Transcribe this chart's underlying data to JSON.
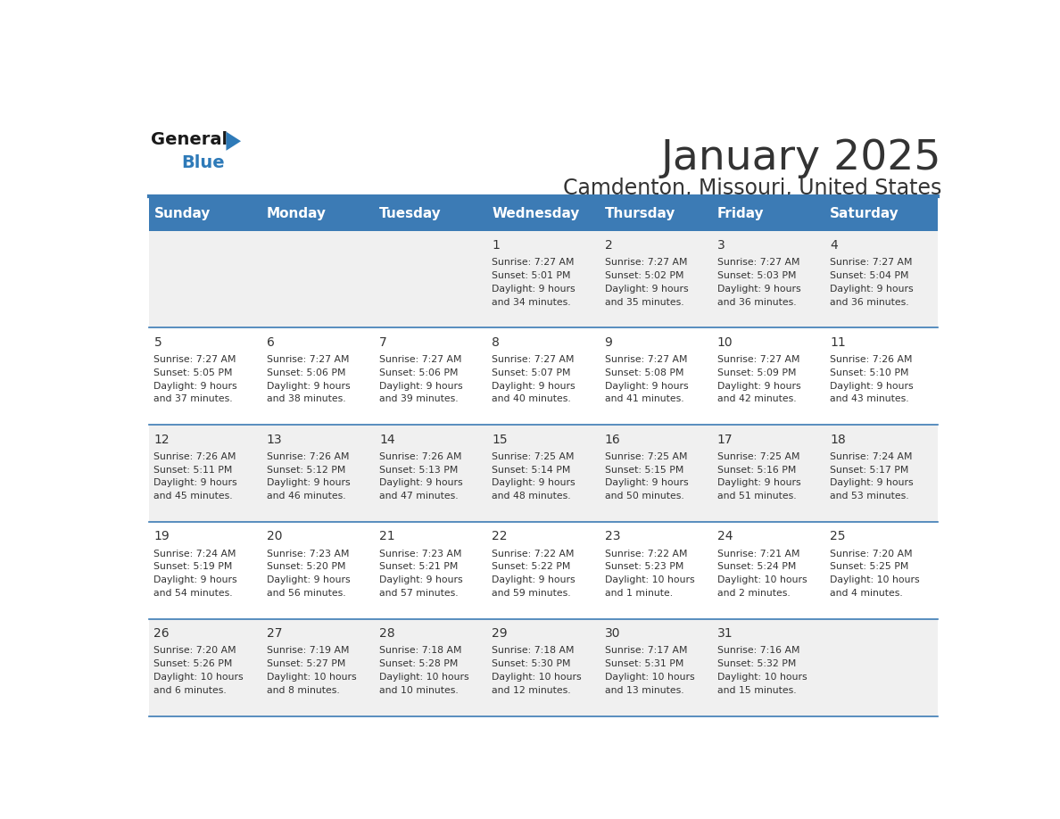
{
  "title": "January 2025",
  "subtitle": "Camdenton, Missouri, United States",
  "header_color": "#3C7BB5",
  "header_text_color": "#FFFFFF",
  "day_names": [
    "Sunday",
    "Monday",
    "Tuesday",
    "Wednesday",
    "Thursday",
    "Friday",
    "Saturday"
  ],
  "background_color": "#FFFFFF",
  "cell_bg_even": "#F0F0F0",
  "cell_bg_odd": "#FFFFFF",
  "separator_color": "#3C7BB5",
  "text_color": "#333333",
  "day_num_color": "#333333",
  "logo_general_color": "#1a1a1a",
  "logo_blue_color": "#2E7AB8",
  "calendar_data": [
    [
      null,
      null,
      null,
      {
        "day": 1,
        "sunrise": "7:27 AM",
        "sunset": "5:01 PM",
        "daylight": "9 hours and 34 minutes."
      },
      {
        "day": 2,
        "sunrise": "7:27 AM",
        "sunset": "5:02 PM",
        "daylight": "9 hours and 35 minutes."
      },
      {
        "day": 3,
        "sunrise": "7:27 AM",
        "sunset": "5:03 PM",
        "daylight": "9 hours and 36 minutes."
      },
      {
        "day": 4,
        "sunrise": "7:27 AM",
        "sunset": "5:04 PM",
        "daylight": "9 hours and 36 minutes."
      }
    ],
    [
      {
        "day": 5,
        "sunrise": "7:27 AM",
        "sunset": "5:05 PM",
        "daylight": "9 hours and 37 minutes."
      },
      {
        "day": 6,
        "sunrise": "7:27 AM",
        "sunset": "5:06 PM",
        "daylight": "9 hours and 38 minutes."
      },
      {
        "day": 7,
        "sunrise": "7:27 AM",
        "sunset": "5:06 PM",
        "daylight": "9 hours and 39 minutes."
      },
      {
        "day": 8,
        "sunrise": "7:27 AM",
        "sunset": "5:07 PM",
        "daylight": "9 hours and 40 minutes."
      },
      {
        "day": 9,
        "sunrise": "7:27 AM",
        "sunset": "5:08 PM",
        "daylight": "9 hours and 41 minutes."
      },
      {
        "day": 10,
        "sunrise": "7:27 AM",
        "sunset": "5:09 PM",
        "daylight": "9 hours and 42 minutes."
      },
      {
        "day": 11,
        "sunrise": "7:26 AM",
        "sunset": "5:10 PM",
        "daylight": "9 hours and 43 minutes."
      }
    ],
    [
      {
        "day": 12,
        "sunrise": "7:26 AM",
        "sunset": "5:11 PM",
        "daylight": "9 hours and 45 minutes."
      },
      {
        "day": 13,
        "sunrise": "7:26 AM",
        "sunset": "5:12 PM",
        "daylight": "9 hours and 46 minutes."
      },
      {
        "day": 14,
        "sunrise": "7:26 AM",
        "sunset": "5:13 PM",
        "daylight": "9 hours and 47 minutes."
      },
      {
        "day": 15,
        "sunrise": "7:25 AM",
        "sunset": "5:14 PM",
        "daylight": "9 hours and 48 minutes."
      },
      {
        "day": 16,
        "sunrise": "7:25 AM",
        "sunset": "5:15 PM",
        "daylight": "9 hours and 50 minutes."
      },
      {
        "day": 17,
        "sunrise": "7:25 AM",
        "sunset": "5:16 PM",
        "daylight": "9 hours and 51 minutes."
      },
      {
        "day": 18,
        "sunrise": "7:24 AM",
        "sunset": "5:17 PM",
        "daylight": "9 hours and 53 minutes."
      }
    ],
    [
      {
        "day": 19,
        "sunrise": "7:24 AM",
        "sunset": "5:19 PM",
        "daylight": "9 hours and 54 minutes."
      },
      {
        "day": 20,
        "sunrise": "7:23 AM",
        "sunset": "5:20 PM",
        "daylight": "9 hours and 56 minutes."
      },
      {
        "day": 21,
        "sunrise": "7:23 AM",
        "sunset": "5:21 PM",
        "daylight": "9 hours and 57 minutes."
      },
      {
        "day": 22,
        "sunrise": "7:22 AM",
        "sunset": "5:22 PM",
        "daylight": "9 hours and 59 minutes."
      },
      {
        "day": 23,
        "sunrise": "7:22 AM",
        "sunset": "5:23 PM",
        "daylight": "10 hours and 1 minute."
      },
      {
        "day": 24,
        "sunrise": "7:21 AM",
        "sunset": "5:24 PM",
        "daylight": "10 hours and 2 minutes."
      },
      {
        "day": 25,
        "sunrise": "7:20 AM",
        "sunset": "5:25 PM",
        "daylight": "10 hours and 4 minutes."
      }
    ],
    [
      {
        "day": 26,
        "sunrise": "7:20 AM",
        "sunset": "5:26 PM",
        "daylight": "10 hours and 6 minutes."
      },
      {
        "day": 27,
        "sunrise": "7:19 AM",
        "sunset": "5:27 PM",
        "daylight": "10 hours and 8 minutes."
      },
      {
        "day": 28,
        "sunrise": "7:18 AM",
        "sunset": "5:28 PM",
        "daylight": "10 hours and 10 minutes."
      },
      {
        "day": 29,
        "sunrise": "7:18 AM",
        "sunset": "5:30 PM",
        "daylight": "10 hours and 12 minutes."
      },
      {
        "day": 30,
        "sunrise": "7:17 AM",
        "sunset": "5:31 PM",
        "daylight": "10 hours and 13 minutes."
      },
      {
        "day": 31,
        "sunrise": "7:16 AM",
        "sunset": "5:32 PM",
        "daylight": "10 hours and 15 minutes."
      },
      null
    ]
  ]
}
